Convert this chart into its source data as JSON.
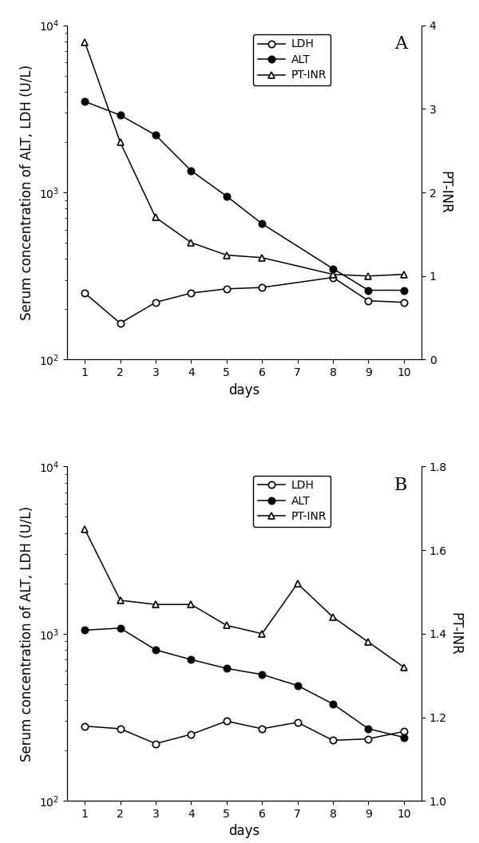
{
  "panel_A": {
    "label": "A",
    "days_LDH": [
      1,
      2,
      3,
      4,
      5,
      6,
      8,
      9,
      10
    ],
    "LDH": [
      250,
      165,
      220,
      250,
      265,
      270,
      310,
      225,
      220
    ],
    "days_ALT": [
      1,
      2,
      3,
      4,
      5,
      6,
      8,
      9,
      10
    ],
    "ALT": [
      3500,
      2900,
      2200,
      1350,
      950,
      650,
      350,
      260,
      260
    ],
    "days_PTINR": [
      1,
      2,
      3,
      4,
      5,
      6,
      8,
      9,
      10
    ],
    "PTINR": [
      3.8,
      2.6,
      1.7,
      1.4,
      1.25,
      1.22,
      1.02,
      1.0,
      1.02
    ],
    "ylim_left": [
      100,
      10000
    ],
    "ylim_right": [
      0,
      4
    ],
    "yticks_right": [
      0,
      1,
      2,
      3,
      4
    ],
    "xticks": [
      1,
      2,
      3,
      4,
      5,
      6,
      7,
      8,
      9,
      10
    ],
    "ylabel_left": "Serum concentration of ALT, LDH (U/L)",
    "ylabel_right": "PT-INR",
    "xlabel": "days"
  },
  "panel_B": {
    "label": "B",
    "days_LDH": [
      1,
      2,
      3,
      4,
      5,
      6,
      7,
      8,
      9,
      10
    ],
    "LDH": [
      280,
      270,
      220,
      250,
      300,
      270,
      295,
      230,
      235,
      260
    ],
    "days_ALT": [
      1,
      2,
      3,
      4,
      5,
      6,
      7,
      8,
      9,
      10
    ],
    "ALT": [
      1050,
      1080,
      800,
      700,
      620,
      570,
      490,
      380,
      270,
      240
    ],
    "days_PTINR": [
      1,
      2,
      3,
      4,
      5,
      6,
      7,
      8,
      9,
      10
    ],
    "PTINR": [
      1.65,
      1.48,
      1.47,
      1.47,
      1.42,
      1.4,
      1.52,
      1.44,
      1.38,
      1.32
    ],
    "ylim_left": [
      100,
      10000
    ],
    "ylim_right": [
      1.0,
      1.8
    ],
    "yticks_right": [
      1.0,
      1.2,
      1.4,
      1.6,
      1.8
    ],
    "xticks": [
      1,
      2,
      3,
      4,
      5,
      6,
      7,
      8,
      9,
      10
    ],
    "ylabel_left": "Serum concentration of ALT, LDH (U/L)",
    "ylabel_right": "PT-INR",
    "xlabel": "days"
  },
  "line_color": "#000000",
  "marker_size": 6,
  "marker_linewidth": 1.2,
  "line_linewidth": 1.1,
  "legend_fontsize": 10,
  "label_fontsize": 12,
  "tick_fontsize": 10,
  "panel_label_fontsize": 16
}
